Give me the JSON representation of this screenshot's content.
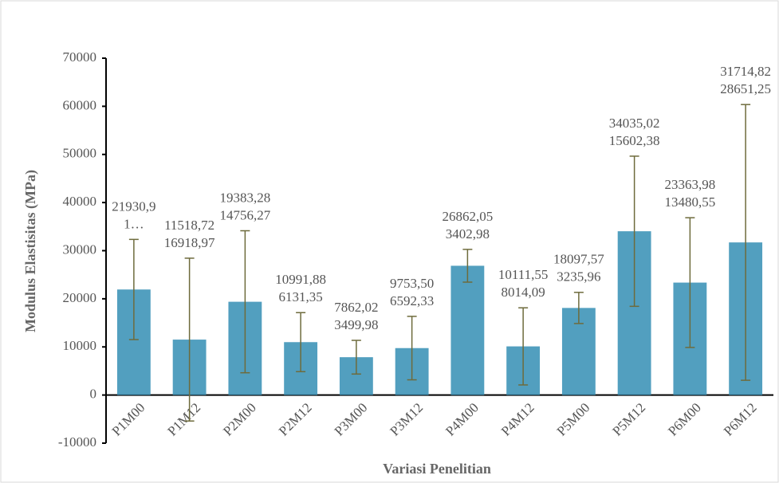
{
  "chart_data": {
    "type": "bar",
    "x_label": "Variasi Penelitian",
    "y_label": "Modulus Elastisitas (MPa)",
    "categories": [
      "P1M00",
      "P1M12",
      "P2M00",
      "P2M12",
      "P3M00",
      "P3M12",
      "P4M00",
      "P4M12",
      "P5M00",
      "P5M12",
      "P6M00",
      "P6M12"
    ],
    "values": [
      21930.9,
      11518.72,
      19383.28,
      10991.88,
      7862.02,
      9753.5,
      26862.05,
      10111.55,
      18097.57,
      34035.02,
      23363.98,
      31714.82
    ],
    "value_labels": [
      "21930,9",
      "11518,72",
      "19383,28",
      "10991,88",
      "7862,02",
      "9753,50",
      "26862,05",
      "10111,55",
      "18097,57",
      "34035,02",
      "23363,98",
      "31714,82"
    ],
    "errors": [
      10411,
      16918.97,
      14756.27,
      6131.35,
      3499.98,
      6592.33,
      3402.98,
      8014.09,
      3235.96,
      15602.38,
      13480.55,
      28651.25
    ],
    "error_labels": [
      "1…",
      "16918,97",
      "14756,27",
      "6131,35",
      "3499,98",
      "6592,33",
      "3402,98",
      "8014,09",
      "3235,96",
      "15602,38",
      "13480,55",
      "28651,25"
    ],
    "color": "#3f95b8",
    "error_color": "#6e6b3c",
    "ylim": [
      -10000,
      70000
    ],
    "yticks": [
      -10000,
      0,
      10000,
      20000,
      30000,
      40000,
      50000,
      60000,
      70000
    ]
  }
}
